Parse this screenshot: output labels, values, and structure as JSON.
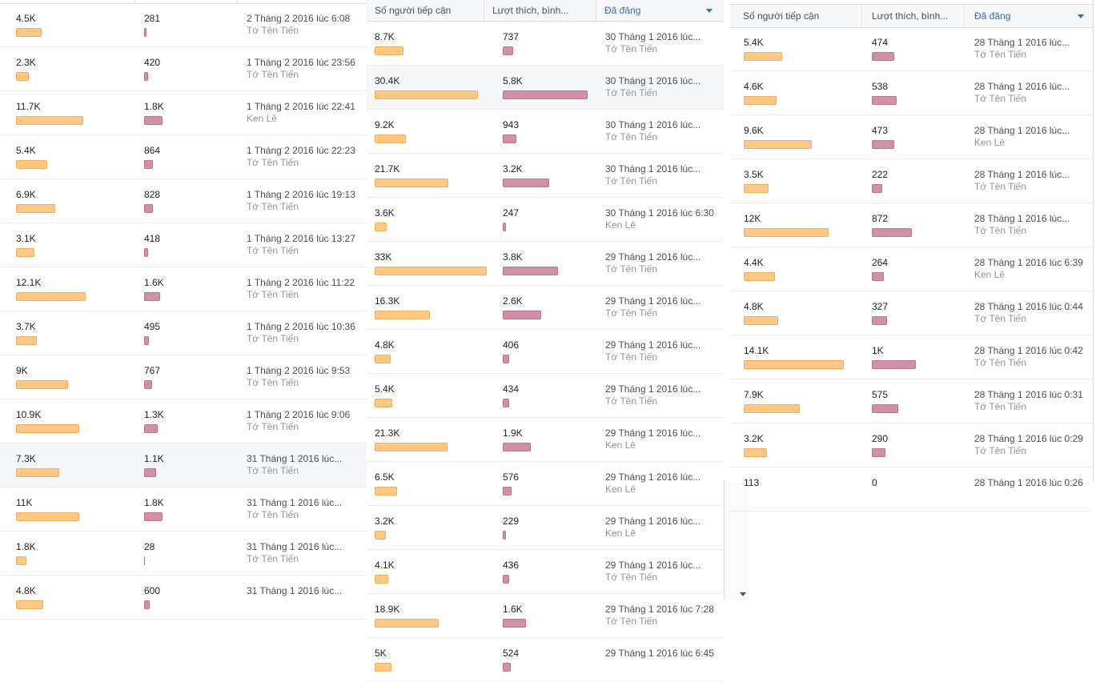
{
  "colors": {
    "reach_bar": "#fdc884",
    "engagement_bar": "#cf90a8",
    "active_header": "#4267b2"
  },
  "headers": {
    "reach": "Số người tiếp cận",
    "engagement": "Lượt thích, bình...",
    "published": "Đã đăng"
  },
  "panels": [
    {
      "rows": [
        {
          "reach": "4.5K",
          "reach_frac": 0.36,
          "eng": "281",
          "eng_frac": 0.05,
          "date": "2 Tháng 2 2016 lúc 6:08",
          "author": "Tớ Tên Tiến"
        },
        {
          "reach": "2.3K",
          "reach_frac": 0.18,
          "eng": "420",
          "eng_frac": 0.08,
          "date": "1 Tháng 2 2016 lúc 23:56",
          "author": "Tớ Tên Tiến"
        },
        {
          "reach": "11.7K",
          "reach_frac": 0.96,
          "eng": "1.8K",
          "eng_frac": 0.35,
          "date": "1 Tháng 2 2016 lúc 22:41",
          "author": "Ken Lê"
        },
        {
          "reach": "5.4K",
          "reach_frac": 0.44,
          "eng": "864",
          "eng_frac": 0.16,
          "date": "1 Tháng 2 2016 lúc 22:23",
          "author": "Tớ Tên Tiến"
        },
        {
          "reach": "6.9K",
          "reach_frac": 0.56,
          "eng": "828",
          "eng_frac": 0.16,
          "date": "1 Tháng 2 2016 lúc 19:13",
          "author": "Tớ Tên Tiến"
        },
        {
          "reach": "3.1K",
          "reach_frac": 0.26,
          "eng": "418",
          "eng_frac": 0.08,
          "date": "1 Tháng 2 2016 lúc 13:27",
          "author": "Tớ Tên Tiến"
        },
        {
          "reach": "12.1K",
          "reach_frac": 0.99,
          "eng": "1.6K",
          "eng_frac": 0.3,
          "date": "1 Tháng 2 2016 lúc 11:22",
          "author": "Tớ Tên Tiến"
        },
        {
          "reach": "3.7K",
          "reach_frac": 0.3,
          "eng": "495",
          "eng_frac": 0.09,
          "date": "1 Tháng 2 2016 lúc 10:36",
          "author": "Tớ Tên Tiến"
        },
        {
          "reach": "9K",
          "reach_frac": 0.74,
          "eng": "767",
          "eng_frac": 0.15,
          "date": "1 Tháng 2 2016 lúc 9:53",
          "author": "Tớ Tên Tiến"
        },
        {
          "reach": "10.9K",
          "reach_frac": 0.9,
          "eng": "1.3K",
          "eng_frac": 0.25,
          "date": "1 Tháng 2 2016 lúc 9:06",
          "author": "Tớ Tên Tiến"
        },
        {
          "reach": "7.3K",
          "reach_frac": 0.61,
          "eng": "1.1K",
          "eng_frac": 0.22,
          "date": "31 Tháng 1 2016 lúc...",
          "author": "Tớ Tên Tiến",
          "highlight": true
        },
        {
          "reach": "11K",
          "reach_frac": 0.9,
          "eng": "1.8K",
          "eng_frac": 0.35,
          "date": "31 Tháng 1 2016 lúc...",
          "author": "Tớ Tên Tiến"
        },
        {
          "reach": "1.8K",
          "reach_frac": 0.15,
          "eng": "28",
          "eng_frac": 0.005,
          "date": "31 Tháng 1 2016 lúc...",
          "author": "Tớ Tên Tiến"
        },
        {
          "reach": "4.8K",
          "reach_frac": 0.39,
          "eng": "600",
          "eng_frac": 0.11,
          "date": "31 Tháng 1 2016 lúc...",
          "author": ""
        }
      ]
    },
    {
      "rows": [
        {
          "reach": "8.7K",
          "reach_frac": 0.26,
          "eng": "737",
          "eng_frac": 0.12,
          "date": "30 Tháng 1 2016 lúc...",
          "author": "Tớ Tên Tiến"
        },
        {
          "reach": "30.4K",
          "reach_frac": 0.92,
          "eng": "5.8K",
          "eng_frac": 0.98,
          "date": "30 Tháng 1 2016 lúc...",
          "author": "Tớ Tên Tiến",
          "highlight": true
        },
        {
          "reach": "9.2K",
          "reach_frac": 0.28,
          "eng": "943",
          "eng_frac": 0.16,
          "date": "30 Tháng 1 2016 lúc...",
          "author": "Tớ Tên Tiến"
        },
        {
          "reach": "21.7K",
          "reach_frac": 0.66,
          "eng": "3.2K",
          "eng_frac": 0.54,
          "date": "30 Tháng 1 2016 lúc...",
          "author": "Tớ Tên Tiến"
        },
        {
          "reach": "3.6K",
          "reach_frac": 0.11,
          "eng": "247",
          "eng_frac": 0.04,
          "date": "30 Tháng 1 2016 lúc 6:30",
          "author": "Ken Lê"
        },
        {
          "reach": "33K",
          "reach_frac": 1.0,
          "eng": "3.8K",
          "eng_frac": 0.64,
          "date": "29 Tháng 1 2016 lúc...",
          "author": "Tớ Tên Tiến"
        },
        {
          "reach": "16.3K",
          "reach_frac": 0.49,
          "eng": "2.6K",
          "eng_frac": 0.44,
          "date": "29 Tháng 1 2016 lúc...",
          "author": "Tớ Tên Tiến"
        },
        {
          "reach": "4.8K",
          "reach_frac": 0.14,
          "eng": "406",
          "eng_frac": 0.07,
          "date": "29 Tháng 1 2016 lúc...",
          "author": "Tớ Tên Tiến"
        },
        {
          "reach": "5.4K",
          "reach_frac": 0.16,
          "eng": "434",
          "eng_frac": 0.07,
          "date": "29 Tháng 1 2016 lúc...",
          "author": "Tớ Tên Tiến"
        },
        {
          "reach": "21.3K",
          "reach_frac": 0.65,
          "eng": "1.9K",
          "eng_frac": 0.32,
          "date": "29 Tháng 1 2016 lúc...",
          "author": "Ken Lê"
        },
        {
          "reach": "6.5K",
          "reach_frac": 0.2,
          "eng": "576",
          "eng_frac": 0.1,
          "date": "29 Tháng 1 2016 lúc...",
          "author": "Ken Lê"
        },
        {
          "reach": "3.2K",
          "reach_frac": 0.1,
          "eng": "229",
          "eng_frac": 0.04,
          "date": "29 Tháng 1 2016 lúc...",
          "author": "Ken Lê"
        },
        {
          "reach": "4.1K",
          "reach_frac": 0.12,
          "eng": "436",
          "eng_frac": 0.07,
          "date": "29 Tháng 1 2016 lúc...",
          "author": "Tớ Tên Tiến"
        },
        {
          "reach": "18.9K",
          "reach_frac": 0.57,
          "eng": "1.6K",
          "eng_frac": 0.27,
          "date": "29 Tháng 1 2016 lúc 7:28",
          "author": "Tớ Tên Tiến"
        },
        {
          "reach": "5K",
          "reach_frac": 0.15,
          "eng": "524",
          "eng_frac": 0.09,
          "date": "29 Tháng 1 2016 lúc 6:45",
          "author": ""
        }
      ]
    },
    {
      "rows": [
        {
          "reach": "5.4K",
          "reach_frac": 0.38,
          "eng": "474",
          "eng_frac": 0.5,
          "date": "28 Tháng 1 2016 lúc...",
          "author": "Tớ Tên Tiến"
        },
        {
          "reach": "4.6K",
          "reach_frac": 0.33,
          "eng": "538",
          "eng_frac": 0.56,
          "date": "28 Tháng 1 2016 lúc...",
          "author": "Tớ Tên Tiến"
        },
        {
          "reach": "9.6K",
          "reach_frac": 0.68,
          "eng": "473",
          "eng_frac": 0.5,
          "date": "28 Tháng 1 2016 lúc...",
          "author": "Ken Lê"
        },
        {
          "reach": "3.5K",
          "reach_frac": 0.25,
          "eng": "222",
          "eng_frac": 0.23,
          "date": "28 Tháng 1 2016 lúc...",
          "author": "Tớ Tên Tiến"
        },
        {
          "reach": "12K",
          "reach_frac": 0.85,
          "eng": "872",
          "eng_frac": 0.91,
          "date": "28 Tháng 1 2016 lúc...",
          "author": "Tớ Tên Tiến"
        },
        {
          "reach": "4.4K",
          "reach_frac": 0.31,
          "eng": "264",
          "eng_frac": 0.28,
          "date": "28 Tháng 1 2016 lúc 6:39",
          "author": "Ken Lê"
        },
        {
          "reach": "4.8K",
          "reach_frac": 0.34,
          "eng": "327",
          "eng_frac": 0.34,
          "date": "28 Tháng 1 2016 lúc 0:44",
          "author": "Tớ Tên Tiến"
        },
        {
          "reach": "14.1K",
          "reach_frac": 1.0,
          "eng": "1K",
          "eng_frac": 1.0,
          "date": "28 Tháng 1 2016 lúc 0:42",
          "author": "Tớ Tên Tiến"
        },
        {
          "reach": "7.9K",
          "reach_frac": 0.56,
          "eng": "575",
          "eng_frac": 0.6,
          "date": "28 Tháng 1 2016 lúc 0:31",
          "author": "Tớ Tên Tiến"
        },
        {
          "reach": "3.2K",
          "reach_frac": 0.23,
          "eng": "290",
          "eng_frac": 0.3,
          "date": "28 Tháng 1 2016 lúc 0:29",
          "author": "Tớ Tên Tiến"
        },
        {
          "reach": "113",
          "reach_frac": 0.0,
          "eng": "0",
          "eng_frac": 0.0,
          "date": "28 Tháng 1 2016 lúc 0:26",
          "author": ""
        }
      ]
    }
  ]
}
